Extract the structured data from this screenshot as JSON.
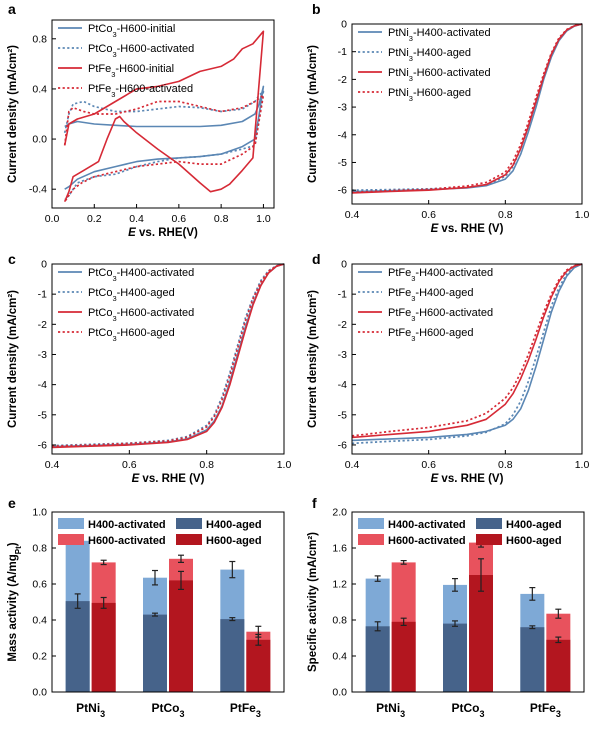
{
  "colors": {
    "blue": "#5b87b4",
    "red": "#d62a36",
    "light_blue": "#7ea9d6",
    "dark_blue": "#46638a",
    "light_red": "#e8525d",
    "dark_red": "#b3161f"
  },
  "chart_data": [
    {
      "panel": "a",
      "type": "line",
      "xlabel": "E vs. RHE(V)",
      "ylabel": "Current density (mA/cm²)",
      "xlim": [
        0.0,
        1.05
      ],
      "ylim": [
        -0.55,
        0.95
      ],
      "xticks": [
        0.0,
        0.2,
        0.4,
        0.6,
        0.8,
        1.0
      ],
      "yticks": [
        -0.4,
        0.0,
        0.4,
        0.8
      ],
      "legend_position": "top-left",
      "series": [
        {
          "name": "PtCo3-H600-initial",
          "color": "#5b87b4",
          "style": "solid",
          "x": [
            0.06,
            0.08,
            0.12,
            0.2,
            0.3,
            0.4,
            0.5,
            0.6,
            0.7,
            0.8,
            0.9,
            0.96,
            0.98,
            1.0,
            1.0,
            0.98,
            0.96,
            0.9,
            0.8,
            0.7,
            0.6,
            0.5,
            0.4,
            0.3,
            0.2,
            0.12,
            0.08,
            0.06
          ],
          "y": [
            0.1,
            0.12,
            0.14,
            0.12,
            0.11,
            0.1,
            0.1,
            0.1,
            0.1,
            0.11,
            0.14,
            0.2,
            0.28,
            0.42,
            0.42,
            0.2,
            0.0,
            -0.06,
            -0.12,
            -0.14,
            -0.15,
            -0.16,
            -0.18,
            -0.22,
            -0.26,
            -0.32,
            -0.38,
            -0.4
          ]
        },
        {
          "name": "PtCo3-H600-activated",
          "color": "#5b87b4",
          "style": "dotted",
          "x": [
            0.06,
            0.08,
            0.1,
            0.15,
            0.2,
            0.3,
            0.4,
            0.5,
            0.6,
            0.7,
            0.8,
            0.9,
            0.96,
            0.98,
            1.0,
            1.0,
            0.96,
            0.9,
            0.8,
            0.7,
            0.6,
            0.5,
            0.4,
            0.3,
            0.2,
            0.12,
            0.08,
            0.06
          ],
          "y": [
            0.05,
            0.2,
            0.28,
            0.3,
            0.26,
            0.22,
            0.22,
            0.24,
            0.26,
            0.25,
            0.22,
            0.24,
            0.3,
            0.35,
            0.38,
            0.38,
            -0.05,
            -0.08,
            -0.12,
            -0.14,
            -0.15,
            -0.18,
            -0.22,
            -0.28,
            -0.3,
            -0.35,
            -0.45,
            -0.48
          ]
        },
        {
          "name": "PtFe3-H600-initial",
          "color": "#d62a36",
          "style": "solid",
          "x": [
            0.06,
            0.08,
            0.12,
            0.2,
            0.3,
            0.4,
            0.5,
            0.6,
            0.7,
            0.8,
            0.86,
            0.9,
            0.95,
            1.0,
            1.0,
            0.95,
            0.9,
            0.84,
            0.8,
            0.75,
            0.7,
            0.6,
            0.5,
            0.4,
            0.34,
            0.32,
            0.3,
            0.26,
            0.22,
            0.15,
            0.1,
            0.08,
            0.06
          ],
          "y": [
            -0.05,
            0.12,
            0.16,
            0.2,
            0.3,
            0.4,
            0.42,
            0.46,
            0.54,
            0.58,
            0.64,
            0.72,
            0.76,
            0.86,
            0.86,
            -0.15,
            -0.25,
            -0.36,
            -0.4,
            -0.42,
            -0.35,
            -0.2,
            -0.08,
            0.05,
            0.14,
            0.18,
            0.16,
            0.0,
            -0.18,
            -0.25,
            -0.3,
            -0.42,
            -0.5
          ]
        },
        {
          "name": "PtFe3-H600-activated",
          "color": "#d62a36",
          "style": "dotted",
          "x": [
            0.06,
            0.08,
            0.1,
            0.15,
            0.2,
            0.3,
            0.4,
            0.5,
            0.6,
            0.7,
            0.8,
            0.9,
            0.96,
            1.0,
            1.0,
            0.96,
            0.9,
            0.8,
            0.7,
            0.6,
            0.5,
            0.4,
            0.3,
            0.2,
            0.14,
            0.1,
            0.08,
            0.06
          ],
          "y": [
            -0.05,
            0.22,
            0.25,
            0.22,
            0.2,
            0.2,
            0.24,
            0.3,
            0.3,
            0.26,
            0.22,
            0.25,
            0.3,
            0.35,
            0.35,
            -0.05,
            -0.12,
            -0.2,
            -0.2,
            -0.18,
            -0.2,
            -0.22,
            -0.26,
            -0.3,
            -0.35,
            -0.4,
            -0.45,
            -0.5
          ]
        }
      ]
    },
    {
      "panel": "b",
      "type": "line",
      "xlabel": "E vs. RHE (V)",
      "ylabel": "Current density (mA/cm²)",
      "xlim": [
        0.4,
        1.0
      ],
      "ylim": [
        -6.5,
        0
      ],
      "xticks": [
        0.4,
        0.6,
        0.8,
        1.0
      ],
      "yticks": [
        0,
        -1,
        -2,
        -3,
        -4,
        -5,
        -6
      ],
      "legend_position": "top-left",
      "series": [
        {
          "name": "PtNi3-H400-activated",
          "color": "#5b87b4",
          "style": "solid",
          "x": [
            0.4,
            0.5,
            0.6,
            0.7,
            0.75,
            0.8,
            0.82,
            0.84,
            0.86,
            0.88,
            0.9,
            0.92,
            0.94,
            0.96,
            0.98,
            1.0
          ],
          "y": [
            -6.05,
            -6.02,
            -5.98,
            -5.92,
            -5.84,
            -5.6,
            -5.3,
            -4.7,
            -3.9,
            -3.0,
            -2.0,
            -1.2,
            -0.6,
            -0.25,
            -0.08,
            0.0
          ]
        },
        {
          "name": "PtNi3-H400-aged",
          "color": "#5b87b4",
          "style": "dotted",
          "x": [
            0.4,
            0.5,
            0.6,
            0.7,
            0.75,
            0.8,
            0.82,
            0.84,
            0.86,
            0.88,
            0.9,
            0.92,
            0.94,
            0.96,
            0.98,
            1.0
          ],
          "y": [
            -6.0,
            -5.98,
            -5.95,
            -5.9,
            -5.82,
            -5.5,
            -5.15,
            -4.5,
            -3.7,
            -2.8,
            -1.9,
            -1.1,
            -0.55,
            -0.22,
            -0.07,
            0.0
          ]
        },
        {
          "name": "PtNi3-H600-activated",
          "color": "#d62a36",
          "style": "solid",
          "x": [
            0.4,
            0.5,
            0.6,
            0.7,
            0.75,
            0.8,
            0.82,
            0.84,
            0.86,
            0.88,
            0.9,
            0.92,
            0.94,
            0.96,
            0.98,
            1.0
          ],
          "y": [
            -6.1,
            -6.05,
            -6.0,
            -5.9,
            -5.8,
            -5.45,
            -5.1,
            -4.5,
            -3.7,
            -2.8,
            -1.9,
            -1.1,
            -0.55,
            -0.22,
            -0.07,
            0.0
          ]
        },
        {
          "name": "PtNi3-H600-aged",
          "color": "#d62a36",
          "style": "dotted",
          "x": [
            0.4,
            0.5,
            0.6,
            0.7,
            0.75,
            0.8,
            0.82,
            0.84,
            0.86,
            0.88,
            0.9,
            0.92,
            0.94,
            0.96,
            0.98,
            1.0
          ],
          "y": [
            -6.08,
            -6.02,
            -5.97,
            -5.85,
            -5.72,
            -5.35,
            -4.95,
            -4.35,
            -3.55,
            -2.65,
            -1.8,
            -1.05,
            -0.5,
            -0.2,
            -0.06,
            0.0
          ]
        }
      ]
    },
    {
      "panel": "c",
      "type": "line",
      "xlabel": "E vs. RHE (V)",
      "ylabel": "Current density (mA/cm²)",
      "xlim": [
        0.4,
        1.0
      ],
      "ylim": [
        -6.3,
        0
      ],
      "xticks": [
        0.4,
        0.6,
        0.8,
        1.0
      ],
      "yticks": [
        0,
        -1,
        -2,
        -3,
        -4,
        -5,
        -6
      ],
      "legend_position": "top-left",
      "series": [
        {
          "name": "PtCo3-H400-activated",
          "color": "#5b87b4",
          "style": "solid",
          "x": [
            0.4,
            0.5,
            0.6,
            0.7,
            0.75,
            0.8,
            0.82,
            0.84,
            0.86,
            0.88,
            0.9,
            0.92,
            0.94,
            0.96,
            0.98,
            1.0
          ],
          "y": [
            -6.05,
            -6.02,
            -5.98,
            -5.9,
            -5.8,
            -5.5,
            -5.2,
            -4.7,
            -3.9,
            -3.0,
            -2.1,
            -1.3,
            -0.7,
            -0.3,
            -0.08,
            0.0
          ]
        },
        {
          "name": "PtCo3-H400-aged",
          "color": "#5b87b4",
          "style": "dotted",
          "x": [
            0.4,
            0.5,
            0.6,
            0.7,
            0.75,
            0.8,
            0.82,
            0.84,
            0.86,
            0.88,
            0.9,
            0.92,
            0.94,
            0.96,
            0.98,
            1.0
          ],
          "y": [
            -6.02,
            -5.98,
            -5.94,
            -5.85,
            -5.72,
            -5.35,
            -5.0,
            -4.4,
            -3.6,
            -2.7,
            -1.8,
            -1.1,
            -0.55,
            -0.22,
            -0.06,
            0.0
          ]
        },
        {
          "name": "PtCo3-H600-activated",
          "color": "#d62a36",
          "style": "solid",
          "x": [
            0.4,
            0.5,
            0.6,
            0.7,
            0.75,
            0.8,
            0.82,
            0.84,
            0.86,
            0.88,
            0.9,
            0.92,
            0.94,
            0.96,
            0.98,
            1.0
          ],
          "y": [
            -6.08,
            -6.04,
            -6.0,
            -5.92,
            -5.82,
            -5.55,
            -5.25,
            -4.75,
            -4.0,
            -3.1,
            -2.2,
            -1.35,
            -0.72,
            -0.3,
            -0.08,
            0.0
          ]
        },
        {
          "name": "PtCo3-H600-aged",
          "color": "#d62a36",
          "style": "dotted",
          "x": [
            0.4,
            0.5,
            0.6,
            0.7,
            0.75,
            0.8,
            0.82,
            0.84,
            0.86,
            0.88,
            0.9,
            0.92,
            0.94,
            0.96,
            0.98,
            1.0
          ],
          "y": [
            -6.04,
            -6.0,
            -5.95,
            -5.87,
            -5.75,
            -5.4,
            -5.05,
            -4.5,
            -3.7,
            -2.8,
            -1.9,
            -1.15,
            -0.6,
            -0.24,
            -0.07,
            0.0
          ]
        }
      ]
    },
    {
      "panel": "d",
      "type": "line",
      "xlabel": "E vs. RHE (V)",
      "ylabel": "Current density (mA/cm²)",
      "xlim": [
        0.4,
        1.0
      ],
      "ylim": [
        -6.3,
        0
      ],
      "xticks": [
        0.4,
        0.6,
        0.8,
        1.0
      ],
      "yticks": [
        0,
        -1,
        -2,
        -3,
        -4,
        -5,
        -6
      ],
      "legend_position": "top-left",
      "series": [
        {
          "name": "PtFe3-H400-activated",
          "color": "#5b87b4",
          "style": "solid",
          "x": [
            0.4,
            0.5,
            0.6,
            0.7,
            0.75,
            0.8,
            0.82,
            0.84,
            0.86,
            0.88,
            0.9,
            0.92,
            0.94,
            0.96,
            0.98,
            1.0
          ],
          "y": [
            -5.85,
            -5.8,
            -5.75,
            -5.65,
            -5.55,
            -5.35,
            -5.15,
            -4.8,
            -4.2,
            -3.4,
            -2.5,
            -1.6,
            -0.9,
            -0.4,
            -0.12,
            0.0
          ]
        },
        {
          "name": "PtFe3-H400-aged",
          "color": "#5b87b4",
          "style": "dotted",
          "x": [
            0.4,
            0.5,
            0.6,
            0.7,
            0.75,
            0.8,
            0.82,
            0.84,
            0.86,
            0.88,
            0.9,
            0.92,
            0.94,
            0.96,
            0.98,
            1.0
          ],
          "y": [
            -5.95,
            -5.88,
            -5.82,
            -5.7,
            -5.58,
            -5.3,
            -5.0,
            -4.55,
            -3.9,
            -3.1,
            -2.25,
            -1.4,
            -0.78,
            -0.33,
            -0.1,
            0.0
          ]
        },
        {
          "name": "PtFe3-H600-activated",
          "color": "#d62a36",
          "style": "solid",
          "x": [
            0.4,
            0.5,
            0.6,
            0.7,
            0.75,
            0.8,
            0.82,
            0.84,
            0.86,
            0.88,
            0.9,
            0.92,
            0.94,
            0.96,
            0.98,
            1.0
          ],
          "y": [
            -5.75,
            -5.65,
            -5.55,
            -5.35,
            -5.15,
            -4.65,
            -4.3,
            -3.8,
            -3.2,
            -2.5,
            -1.75,
            -1.1,
            -0.58,
            -0.24,
            -0.07,
            0.0
          ]
        },
        {
          "name": "PtFe3-H600-aged",
          "color": "#d62a36",
          "style": "dotted",
          "x": [
            0.4,
            0.5,
            0.6,
            0.7,
            0.75,
            0.8,
            0.82,
            0.84,
            0.86,
            0.88,
            0.9,
            0.92,
            0.94,
            0.96,
            0.98,
            1.0
          ],
          "y": [
            -5.7,
            -5.55,
            -5.42,
            -5.2,
            -4.95,
            -4.45,
            -4.1,
            -3.6,
            -3.0,
            -2.3,
            -1.6,
            -1.0,
            -0.52,
            -0.2,
            -0.06,
            0.0
          ]
        }
      ]
    },
    {
      "panel": "e",
      "type": "bar",
      "xlabel": "",
      "ylabel": "Mass activity (A/mgPt)",
      "ylim": [
        0.0,
        1.0
      ],
      "yticks": [
        0.0,
        0.2,
        0.4,
        0.6,
        0.8,
        1.0
      ],
      "legend_position": "top",
      "categories": [
        "PtNi3",
        "PtCo3",
        "PtFe3"
      ],
      "series": [
        {
          "name": "H400-activated",
          "color": "#7ea9d6",
          "values": [
            0.84,
            0.635,
            0.68
          ],
          "err": [
            0.015,
            0.04,
            0.045
          ]
        },
        {
          "name": "H400-aged",
          "color": "#46638a",
          "values": [
            0.505,
            0.43,
            0.405
          ],
          "err": [
            0.04,
            0.008,
            0.008
          ]
        },
        {
          "name": "H600-activated",
          "color": "#e8525d",
          "values": [
            0.72,
            0.74,
            0.335
          ],
          "err": [
            0.012,
            0.02,
            0.03
          ]
        },
        {
          "name": "H600-aged",
          "color": "#b3161f",
          "values": [
            0.495,
            0.62,
            0.29
          ],
          "err": [
            0.03,
            0.05,
            0.03
          ]
        }
      ]
    },
    {
      "panel": "f",
      "type": "bar",
      "xlabel": "",
      "ylabel": "Specific activity (mA/cm²)",
      "ylim": [
        0.0,
        2.0
      ],
      "yticks": [
        0.0,
        0.4,
        0.8,
        1.2,
        1.6,
        2.0
      ],
      "legend_position": "top",
      "categories": [
        "PtNi3",
        "PtCo3",
        "PtFe3"
      ],
      "series": [
        {
          "name": "H400-activated",
          "color": "#7ea9d6",
          "values": [
            1.26,
            1.19,
            1.09
          ],
          "err": [
            0.03,
            0.07,
            0.07
          ]
        },
        {
          "name": "H400-aged",
          "color": "#46638a",
          "values": [
            0.73,
            0.76,
            0.72
          ],
          "err": [
            0.05,
            0.03,
            0.015
          ]
        },
        {
          "name": "H600-activated",
          "color": "#e8525d",
          "values": [
            1.44,
            1.66,
            0.87
          ],
          "err": [
            0.02,
            0.05,
            0.05
          ]
        },
        {
          "name": "H600-aged",
          "color": "#b3161f",
          "values": [
            0.78,
            1.3,
            0.58
          ],
          "err": [
            0.04,
            0.18,
            0.03
          ]
        }
      ]
    }
  ]
}
